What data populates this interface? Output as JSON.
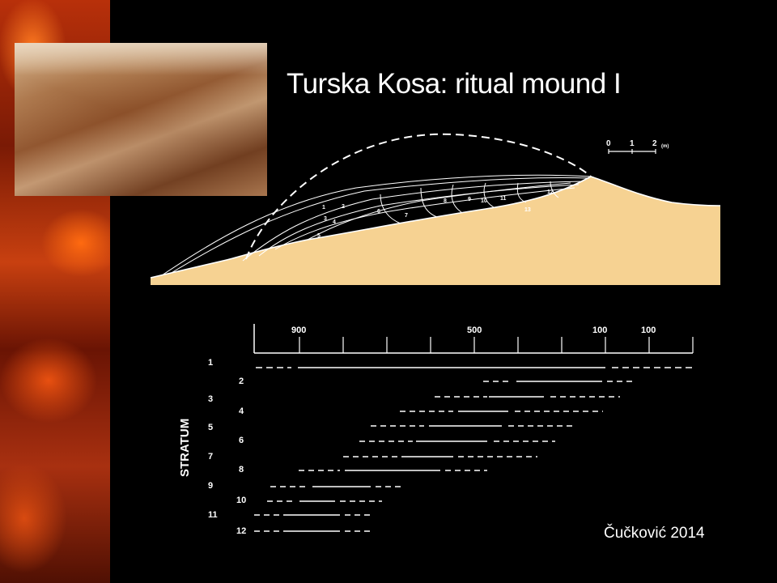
{
  "title": "Turska Kosa: ritual mound I",
  "credit": "Čučković 2014",
  "colors": {
    "mound_fill": "#f6d292",
    "background": "#000000",
    "line": "#ffffff"
  },
  "section": {
    "scale_labels": [
      "0",
      "1",
      "2"
    ],
    "scale_unit": "(m)",
    "layer_numbers": [
      "1",
      "2",
      "3",
      "4",
      "5",
      "6",
      "7",
      "8",
      "9",
      "10",
      "11",
      "12",
      "13"
    ]
  },
  "timeline": {
    "axis_title": "STRATUM",
    "axis_labels": [
      "900",
      "500",
      "100",
      "100"
    ],
    "strata": [
      "1",
      "2",
      "3",
      "4",
      "5",
      "6",
      "7",
      "8",
      "9",
      "10",
      "11",
      "12"
    ]
  }
}
